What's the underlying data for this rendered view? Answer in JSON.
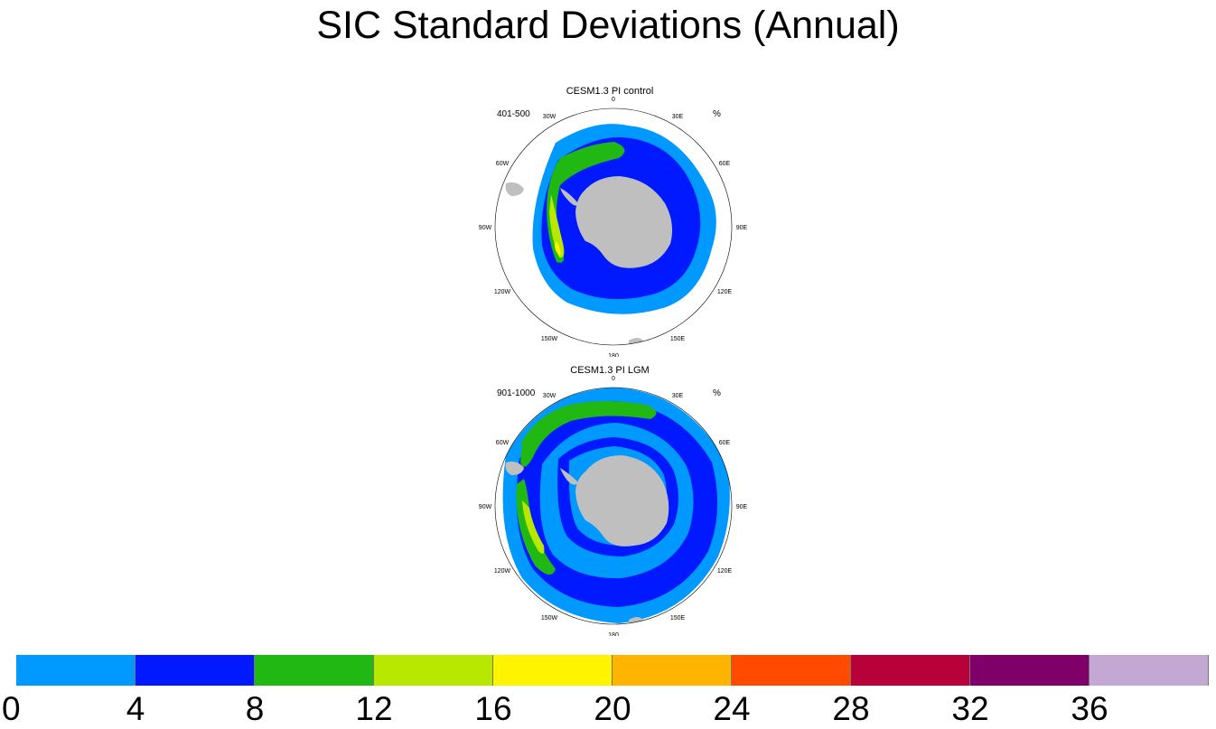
{
  "title": "SIC Standard Deviations (Annual)",
  "panels": [
    {
      "title": "CESM1.3 PI control",
      "left_label": "401-500",
      "right_label": "%",
      "lon_labels": [
        "0",
        "30E",
        "60E",
        "90E",
        "120E",
        "150E",
        "180",
        "150W",
        "120W",
        "90W",
        "60W",
        "30W"
      ]
    },
    {
      "title": "CESM1.3 PI LGM",
      "left_label": "901-1000",
      "right_label": "%",
      "lon_labels": [
        "0",
        "30E",
        "60E",
        "90E",
        "120E",
        "150E",
        "180",
        "150W",
        "120W",
        "90W",
        "60W",
        "30W"
      ]
    }
  ],
  "colors": {
    "land": "#bfbfbf",
    "levels": [
      "#0099ff",
      "#0019ff",
      "#22b814",
      "#b8e800",
      "#fff400",
      "#ffb500",
      "#ff4a00",
      "#b8003a",
      "#7f0068",
      "#c4a8d4"
    ]
  },
  "chart_data": {
    "type": "heatmap",
    "projection": "south polar stereographic",
    "colorbar_levels": [
      0,
      4,
      8,
      12,
      16,
      20,
      24,
      28,
      32,
      36
    ],
    "colorbar_tick_labels": [
      "0",
      "4",
      "8",
      "12",
      "16",
      "20",
      "24",
      "28",
      "32",
      "36"
    ]
  }
}
